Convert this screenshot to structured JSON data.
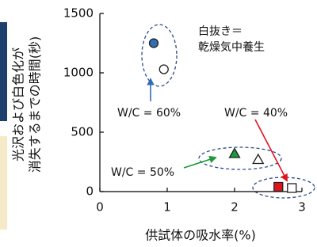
{
  "chart_data": {
    "type": "scatter",
    "y_label_lines": [
      "光沢および白色化が",
      "消失するまでの時間(秒)"
    ],
    "x_label": "供試体の吸水率(%)",
    "x": [
      0.8,
      0.95,
      2.0,
      2.35,
      2.65,
      2.85
    ],
    "values": [
      1250,
      1030,
      320,
      270,
      40,
      30
    ],
    "colors": [
      "#2f6db5",
      "#ffffff",
      "#1a9a3a",
      "#ffffff",
      "#e0141e",
      "#ffffff"
    ],
    "markers": [
      "circle",
      "circle",
      "triangle",
      "triangle",
      "square",
      "square"
    ],
    "xlim": [
      0,
      3
    ],
    "ylim": [
      0,
      1500
    ],
    "xticks": [
      0,
      1,
      2,
      3
    ],
    "yticks": [
      0,
      500,
      1000,
      1500
    ],
    "annotations": [
      {
        "lines": [
          "白抜き＝",
          "乾燥気中養生"
        ]
      },
      {
        "lines": [
          "W/C = 60%"
        ],
        "arrow_color": "#2f6db5"
      },
      {
        "lines": [
          "W/C = 50%"
        ],
        "arrow_color": "#1a9a3a"
      },
      {
        "lines": [
          "W/C = 40%"
        ],
        "arrow_color": "#e0141e"
      }
    ]
  }
}
